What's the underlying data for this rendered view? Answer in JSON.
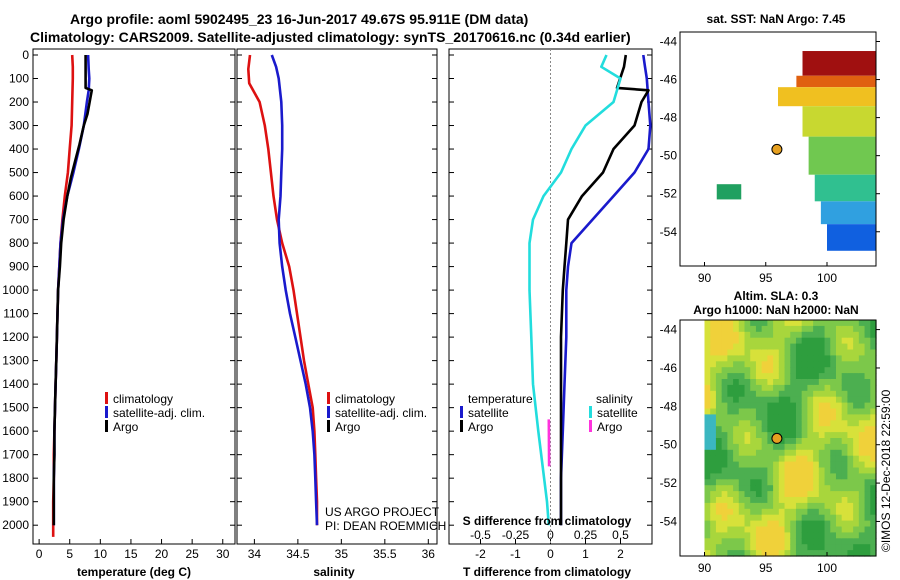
{
  "title": {
    "line1": "Argo profile: aoml 5902495_23 16-Jun-2017 49.67S 95.911E (DM data)",
    "line2": "Climatology: CARS2009. Satellite-adjusted climatology: synTS_20170616.nc (0.34d earlier)"
  },
  "colors": {
    "climatology": "#dd1111",
    "satellite": "#1a1acc",
    "argo": "#000000",
    "s_satellite": "#22dddd",
    "s_argo": "#ff33dd"
  },
  "chart_data": [
    {
      "id": "temperature",
      "type": "line",
      "xlabel": "temperature (deg C)",
      "ylabel": "",
      "xlim": [
        -1,
        32
      ],
      "ylim": [
        2080,
        0
      ],
      "xticks": [
        0,
        5,
        10,
        15,
        20,
        25,
        30
      ],
      "yticks": [
        0,
        100,
        200,
        300,
        400,
        500,
        600,
        700,
        800,
        900,
        1000,
        1100,
        1200,
        1300,
        1400,
        1500,
        1600,
        1700,
        1800,
        1900,
        2000
      ],
      "series": [
        {
          "name": "climatology",
          "color": "#dd1111",
          "points": [
            [
              5.4,
              0
            ],
            [
              5.5,
              50
            ],
            [
              5.5,
              100
            ],
            [
              5.4,
              200
            ],
            [
              5.3,
              300
            ],
            [
              5.0,
              400
            ],
            [
              4.7,
              500
            ],
            [
              4.2,
              600
            ],
            [
              3.8,
              700
            ],
            [
              3.5,
              800
            ],
            [
              3.3,
              900
            ],
            [
              3.1,
              1000
            ],
            [
              3.0,
              1100
            ],
            [
              2.9,
              1200
            ],
            [
              2.8,
              1300
            ],
            [
              2.7,
              1400
            ],
            [
              2.6,
              1500
            ],
            [
              2.5,
              1600
            ],
            [
              2.4,
              1700
            ],
            [
              2.4,
              1800
            ],
            [
              2.3,
              1900
            ],
            [
              2.3,
              2000
            ],
            [
              2.3,
              2050
            ]
          ]
        },
        {
          "name": "satellite-adj. clim.",
          "color": "#1a1acc",
          "points": [
            [
              8.0,
              0
            ],
            [
              8.1,
              60
            ],
            [
              8.2,
              100
            ],
            [
              8.1,
              150
            ],
            [
              7.8,
              200
            ],
            [
              7.3,
              300
            ],
            [
              6.5,
              400
            ],
            [
              5.6,
              500
            ],
            [
              4.6,
              600
            ],
            [
              3.9,
              700
            ],
            [
              3.5,
              800
            ],
            [
              3.3,
              900
            ],
            [
              3.1,
              1000
            ],
            [
              3.0,
              1100
            ],
            [
              2.9,
              1200
            ],
            [
              2.8,
              1300
            ],
            [
              2.7,
              1400
            ],
            [
              2.6,
              1500
            ],
            [
              2.5,
              1600
            ],
            [
              2.5,
              1700
            ],
            [
              2.4,
              1800
            ],
            [
              2.4,
              1900
            ],
            [
              2.4,
              2000
            ]
          ]
        },
        {
          "name": "Argo",
          "color": "#000000",
          "points": [
            [
              7.6,
              0
            ],
            [
              7.6,
              100
            ],
            [
              7.6,
              140
            ],
            [
              8.6,
              150
            ],
            [
              8.4,
              180
            ],
            [
              7.9,
              250
            ],
            [
              7.3,
              300
            ],
            [
              6.6,
              380
            ],
            [
              5.9,
              450
            ],
            [
              5.2,
              520
            ],
            [
              4.6,
              600
            ],
            [
              4.0,
              700
            ],
            [
              3.6,
              800
            ],
            [
              3.4,
              900
            ],
            [
              3.1,
              1000
            ],
            [
              3.0,
              1100
            ],
            [
              2.9,
              1200
            ],
            [
              2.8,
              1300
            ],
            [
              2.7,
              1400
            ],
            [
              2.6,
              1500
            ],
            [
              2.5,
              1600
            ],
            [
              2.5,
              1700
            ],
            [
              2.4,
              1800
            ],
            [
              2.4,
              1900
            ],
            [
              2.4,
              2000
            ]
          ]
        }
      ],
      "legend": {
        "position": "bottom-right",
        "entries": [
          "climatology",
          "satellite-adj. clim.",
          "Argo"
        ]
      }
    },
    {
      "id": "salinity",
      "type": "line",
      "xlabel": "salinity",
      "xlim": [
        33.8,
        36.1
      ],
      "ylim": [
        2080,
        0
      ],
      "xticks": [
        34,
        34.5,
        35,
        35.5,
        36
      ],
      "xtick_labels": [
        "34",
        "34.5",
        "35",
        "35.5",
        "36"
      ],
      "series": [
        {
          "name": "climatology",
          "color": "#dd1111",
          "points": [
            [
              33.95,
              0
            ],
            [
              33.93,
              60
            ],
            [
              33.94,
              120
            ],
            [
              34.0,
              160
            ],
            [
              34.06,
              200
            ],
            [
              34.12,
              300
            ],
            [
              34.16,
              400
            ],
            [
              34.19,
              500
            ],
            [
              34.22,
              600
            ],
            [
              34.26,
              700
            ],
            [
              34.32,
              800
            ],
            [
              34.4,
              900
            ],
            [
              34.45,
              1000
            ],
            [
              34.49,
              1100
            ],
            [
              34.53,
              1200
            ],
            [
              34.57,
              1300
            ],
            [
              34.62,
              1400
            ],
            [
              34.67,
              1500
            ],
            [
              34.69,
              1600
            ],
            [
              34.7,
              1700
            ],
            [
              34.71,
              1800
            ],
            [
              34.72,
              1900
            ],
            [
              34.72,
              2000
            ]
          ]
        },
        {
          "name": "satellite-adj. clim.",
          "color": "#1a1acc",
          "points": [
            [
              34.2,
              0
            ],
            [
              34.25,
              50
            ],
            [
              34.28,
              100
            ],
            [
              34.31,
              200
            ],
            [
              34.32,
              300
            ],
            [
              34.32,
              400
            ],
            [
              34.31,
              500
            ],
            [
              34.3,
              600
            ],
            [
              34.28,
              700
            ],
            [
              34.29,
              800
            ],
            [
              34.32,
              900
            ],
            [
              34.36,
              1000
            ],
            [
              34.41,
              1100
            ],
            [
              34.47,
              1200
            ],
            [
              34.53,
              1300
            ],
            [
              34.59,
              1400
            ],
            [
              34.64,
              1500
            ],
            [
              34.67,
              1600
            ],
            [
              34.69,
              1700
            ],
            [
              34.7,
              1800
            ],
            [
              34.71,
              1900
            ],
            [
              34.72,
              2000
            ]
          ]
        },
        {
          "name": "Argo",
          "color": "#000000",
          "points": []
        }
      ],
      "annotations": [
        "US ARGO PROJECT",
        "PI: DEAN ROEMMICH"
      ],
      "legend": {
        "position": "bottom-right",
        "entries": [
          "climatology",
          "satellite-adj. clim.",
          "Argo"
        ]
      }
    },
    {
      "id": "difference",
      "type": "line",
      "xlabel": "T difference from climatology",
      "top_xlabel": "S difference from climatology",
      "xlim": [
        -2.9,
        2.9
      ],
      "ylim": [
        2080,
        0
      ],
      "xticks": [
        -2,
        -1,
        0,
        1,
        2
      ],
      "top_xticks": [
        -0.5,
        -0.25,
        0,
        0.25,
        0.5
      ],
      "top_xtick_labels": [
        "-0.5",
        "-0.25",
        "0",
        "0.25",
        "0.5"
      ],
      "series": [
        {
          "name": "temperature satellite",
          "color": "#1a1acc",
          "points": [
            [
              2.65,
              0
            ],
            [
              2.7,
              50
            ],
            [
              2.75,
              100
            ],
            [
              2.8,
              200
            ],
            [
              2.85,
              300
            ],
            [
              2.8,
              400
            ],
            [
              2.4,
              500
            ],
            [
              1.8,
              600
            ],
            [
              1.2,
              700
            ],
            [
              0.6,
              800
            ],
            [
              0.5,
              900
            ],
            [
              0.45,
              1000
            ],
            [
              0.45,
              1200
            ],
            [
              0.4,
              1400
            ],
            [
              0.35,
              1600
            ],
            [
              0.3,
              1800
            ],
            [
              0.3,
              2000
            ]
          ]
        },
        {
          "name": "temperature Argo",
          "color": "#000000",
          "points": [
            [
              2.15,
              0
            ],
            [
              2.1,
              50
            ],
            [
              1.9,
              140
            ],
            [
              2.8,
              150
            ],
            [
              2.6,
              200
            ],
            [
              2.4,
              300
            ],
            [
              1.8,
              400
            ],
            [
              1.5,
              500
            ],
            [
              0.9,
              600
            ],
            [
              0.5,
              700
            ],
            [
              0.45,
              800
            ],
            [
              0.4,
              900
            ],
            [
              0.35,
              1000
            ],
            [
              0.3,
              1200
            ],
            [
              0.3,
              1400
            ],
            [
              0.3,
              1600
            ],
            [
              0.3,
              1800
            ],
            [
              0.3,
              2000
            ]
          ]
        },
        {
          "name": "salinity satellite",
          "color": "#22dddd",
          "points": [
            [
              1.6,
              0
            ],
            [
              1.45,
              50
            ],
            [
              2.0,
              100
            ],
            [
              1.8,
              200
            ],
            [
              1.0,
              300
            ],
            [
              0.6,
              400
            ],
            [
              0.3,
              500
            ],
            [
              -0.2,
              600
            ],
            [
              -0.5,
              700
            ],
            [
              -0.6,
              800
            ],
            [
              -0.6,
              1000
            ],
            [
              -0.55,
              1200
            ],
            [
              -0.5,
              1400
            ],
            [
              -0.35,
              1600
            ],
            [
              -0.1,
              1900
            ],
            [
              -0.05,
              2000
            ]
          ]
        },
        {
          "name": "salinity Argo",
          "color": "#ff33dd",
          "points": [
            [
              -0.05,
              1550
            ],
            [
              -0.04,
              1750
            ]
          ]
        }
      ],
      "legend_temperature": {
        "title": "temperature",
        "entries": [
          "satellite",
          "Argo"
        ]
      },
      "legend_salinity": {
        "title": "salinity",
        "entries": [
          "satellite",
          "Argo"
        ]
      }
    },
    {
      "id": "sst_map",
      "type": "heatmap",
      "title": "sat. SST: NaN Argo: 7.45",
      "xticks": [
        90,
        95,
        100
      ],
      "yticks": [
        -44,
        -46,
        -48,
        -50,
        -52,
        -54
      ],
      "xlim": [
        88,
        104
      ],
      "ylim": [
        -55.8,
        -43.5
      ],
      "float_position": [
        95.911,
        -49.67
      ]
    },
    {
      "id": "sla_map",
      "type": "heatmap",
      "title": "Altim. SLA: 0.3",
      "subtitle": "Argo h1000: NaN h2000: NaN",
      "xticks": [
        90,
        95,
        100
      ],
      "yticks": [
        -44,
        -46,
        -48,
        -50,
        -52,
        -54
      ],
      "xlim": [
        88,
        104
      ],
      "ylim": [
        -55.8,
        -43.5
      ],
      "float_position": [
        95.911,
        -49.67
      ]
    }
  ],
  "footer": "©IMOS 12-Dec-2018 22:59:00"
}
